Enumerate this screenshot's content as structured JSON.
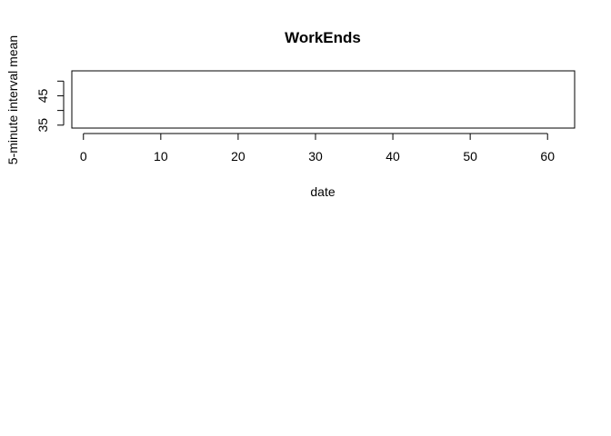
{
  "chart_data": {
    "type": "line",
    "title": "WorkEnds",
    "xlabel": "date",
    "ylabel": "5-minute interval mean",
    "xlim": [
      -1.5,
      63.5
    ],
    "ylim": [
      34,
      53.5
    ],
    "xticks": [
      0,
      10,
      20,
      30,
      40,
      50,
      60
    ],
    "xtick_labels": [
      "0",
      "10",
      "20",
      "30",
      "40",
      "50",
      "60"
    ],
    "yticks": [
      35,
      40,
      45,
      50
    ],
    "ytick_labels": [
      "35",
      "",
      "45",
      ""
    ],
    "grid": false,
    "legend": "none",
    "series": [
      {
        "x": [],
        "values": []
      }
    ]
  }
}
